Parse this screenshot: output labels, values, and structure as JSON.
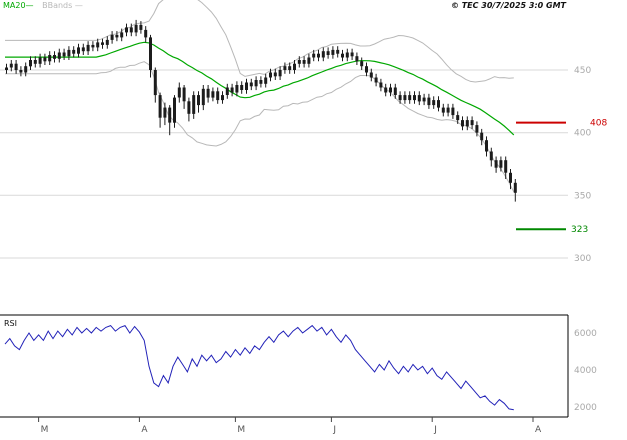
{
  "meta": {
    "copyright": "© TEC 30/7/2025 3:0 GMT"
  },
  "legend": {
    "ma20": "MA20—",
    "bbands": "BBands —"
  },
  "panels": {
    "rsi_label": "RSI"
  },
  "colors": {
    "ma20": "#00a800",
    "bands": "#b8b8b8",
    "candle": "#1c1c1c",
    "rsi": "#2222b8",
    "grid": "#d9d9d9",
    "axis_text": "#a9a9a9",
    "month_text": "#555555",
    "frame": "#000000"
  },
  "chart_data": {
    "type": "candlestick",
    "title": "",
    "price_axis": {
      "side": "right",
      "ticks": [
        450,
        400,
        350,
        300
      ],
      "range": [
        290,
        500
      ]
    },
    "levels": [
      {
        "label": "408",
        "value": 408,
        "color": "#cc0000"
      },
      {
        "label": "323",
        "value": 323,
        "color": "#008800"
      }
    ],
    "month_ticks": [
      {
        "label": "M",
        "day": 7
      },
      {
        "label": "A",
        "day": 28
      },
      {
        "label": "M",
        "day": 48
      },
      {
        "label": "J",
        "day": 68
      },
      {
        "label": "J",
        "day": 89
      },
      {
        "label": "A",
        "day": 110
      }
    ],
    "overlays": [
      "MA20",
      "BollingerBands(20,2)"
    ],
    "candles": [
      [
        450,
        455,
        447,
        452
      ],
      [
        452,
        458,
        449,
        455
      ],
      [
        455,
        458,
        447,
        450
      ],
      [
        450,
        453,
        445,
        448
      ],
      [
        448,
        456,
        445,
        453
      ],
      [
        453,
        461,
        450,
        458
      ],
      [
        458,
        461,
        452,
        455
      ],
      [
        455,
        463,
        452,
        460
      ],
      [
        460,
        463,
        454,
        457
      ],
      [
        457,
        465,
        454,
        462
      ],
      [
        462,
        465,
        456,
        459
      ],
      [
        459,
        467,
        456,
        464
      ],
      [
        464,
        467,
        458,
        461
      ],
      [
        461,
        469,
        458,
        466
      ],
      [
        466,
        469,
        460,
        463
      ],
      [
        463,
        471,
        460,
        468
      ],
      [
        468,
        471,
        462,
        465
      ],
      [
        465,
        473,
        462,
        470
      ],
      [
        470,
        473,
        465,
        468
      ],
      [
        468,
        475,
        465,
        472
      ],
      [
        472,
        475,
        467,
        470
      ],
      [
        470,
        477,
        467,
        474
      ],
      [
        474,
        481,
        471,
        478
      ],
      [
        478,
        481,
        473,
        476
      ],
      [
        476,
        483,
        473,
        480
      ],
      [
        480,
        487,
        477,
        484
      ],
      [
        484,
        487,
        477,
        480
      ],
      [
        480,
        490,
        477,
        486
      ],
      [
        486,
        489,
        479,
        482
      ],
      [
        482,
        485,
        472,
        476
      ],
      [
        476,
        478,
        444,
        450
      ],
      [
        450,
        452,
        424,
        430
      ],
      [
        430,
        432,
        404,
        412
      ],
      [
        412,
        424,
        406,
        420
      ],
      [
        420,
        422,
        398,
        408
      ],
      [
        408,
        430,
        404,
        428
      ],
      [
        428,
        440,
        424,
        436
      ],
      [
        436,
        438,
        419,
        425
      ],
      [
        425,
        428,
        409,
        415
      ],
      [
        415,
        433,
        411,
        430
      ],
      [
        430,
        433,
        416,
        422
      ],
      [
        422,
        438,
        418,
        435
      ],
      [
        435,
        438,
        424,
        428
      ],
      [
        428,
        436,
        425,
        433
      ],
      [
        433,
        436,
        423,
        426
      ],
      [
        426,
        433,
        423,
        430
      ],
      [
        430,
        439,
        427,
        436
      ],
      [
        436,
        439,
        429,
        432
      ],
      [
        432,
        441,
        429,
        438
      ],
      [
        438,
        441,
        431,
        434
      ],
      [
        434,
        443,
        431,
        440
      ],
      [
        440,
        443,
        434,
        437
      ],
      [
        437,
        445,
        434,
        442
      ],
      [
        442,
        445,
        436,
        439
      ],
      [
        439,
        447,
        436,
        444
      ],
      [
        444,
        451,
        441,
        448
      ],
      [
        448,
        451,
        442,
        445
      ],
      [
        445,
        453,
        442,
        450
      ],
      [
        450,
        456,
        447,
        453
      ],
      [
        453,
        456,
        447,
        450
      ],
      [
        450,
        458,
        447,
        455
      ],
      [
        455,
        461,
        452,
        458
      ],
      [
        458,
        461,
        452,
        455
      ],
      [
        455,
        463,
        452,
        460
      ],
      [
        460,
        466,
        457,
        463
      ],
      [
        463,
        466,
        457,
        460
      ],
      [
        460,
        468,
        457,
        465
      ],
      [
        465,
        468,
        459,
        462
      ],
      [
        462,
        469,
        459,
        466
      ],
      [
        466,
        469,
        460,
        463
      ],
      [
        463,
        466,
        457,
        460
      ],
      [
        460,
        467,
        457,
        464
      ],
      [
        464,
        467,
        458,
        461
      ],
      [
        461,
        464,
        454,
        457
      ],
      [
        457,
        460,
        450,
        453
      ],
      [
        453,
        456,
        445,
        448
      ],
      [
        448,
        451,
        441,
        444
      ],
      [
        444,
        447,
        437,
        440
      ],
      [
        440,
        443,
        433,
        436
      ],
      [
        436,
        439,
        429,
        432
      ],
      [
        432,
        439,
        429,
        436
      ],
      [
        436,
        439,
        427,
        430
      ],
      [
        430,
        433,
        423,
        426
      ],
      [
        426,
        433,
        423,
        430
      ],
      [
        430,
        433,
        423,
        426
      ],
      [
        426,
        433,
        423,
        430
      ],
      [
        430,
        433,
        422,
        425
      ],
      [
        425,
        431,
        422,
        428
      ],
      [
        428,
        431,
        419,
        422
      ],
      [
        422,
        429,
        419,
        426
      ],
      [
        426,
        429,
        417,
        420
      ],
      [
        420,
        423,
        413,
        416
      ],
      [
        416,
        423,
        413,
        420
      ],
      [
        420,
        423,
        411,
        414
      ],
      [
        414,
        417,
        407,
        410
      ],
      [
        410,
        413,
        402,
        405
      ],
      [
        405,
        413,
        402,
        410
      ],
      [
        410,
        413,
        403,
        406
      ],
      [
        406,
        409,
        397,
        400
      ],
      [
        400,
        403,
        390,
        394
      ],
      [
        394,
        397,
        381,
        385
      ],
      [
        385,
        388,
        373,
        378
      ],
      [
        378,
        381,
        368,
        372
      ],
      [
        372,
        381,
        369,
        378
      ],
      [
        378,
        381,
        363,
        368
      ],
      [
        368,
        371,
        355,
        360
      ],
      [
        360,
        363,
        345,
        352
      ]
    ],
    "indicator": {
      "name": "RSI",
      "axis_ticks": [
        6000,
        4000,
        2000
      ],
      "values": [
        5400,
        5700,
        5300,
        5100,
        5600,
        6000,
        5600,
        5900,
        5600,
        6100,
        5700,
        6100,
        5800,
        6200,
        5900,
        6300,
        6000,
        6250,
        6000,
        6300,
        6100,
        6300,
        6400,
        6100,
        6300,
        6400,
        6000,
        6350,
        6050,
        5600,
        4200,
        3300,
        3100,
        3700,
        3300,
        4200,
        4700,
        4300,
        3900,
        4600,
        4200,
        4800,
        4500,
        4800,
        4400,
        4600,
        5000,
        4700,
        5100,
        4800,
        5200,
        4900,
        5300,
        5100,
        5500,
        5800,
        5500,
        5900,
        6100,
        5800,
        6100,
        6300,
        6000,
        6200,
        6400,
        6100,
        6300,
        5900,
        6200,
        5800,
        5500,
        5900,
        5600,
        5100,
        4800,
        4500,
        4200,
        3900,
        4300,
        4000,
        4500,
        4100,
        3800,
        4200,
        3900,
        4300,
        4000,
        4200,
        3800,
        4100,
        3700,
        3500,
        3900,
        3600,
        3300,
        3000,
        3400,
        3100,
        2800,
        2500,
        2600,
        2300,
        2100,
        2400,
        2200,
        1900,
        1850
      ]
    }
  }
}
